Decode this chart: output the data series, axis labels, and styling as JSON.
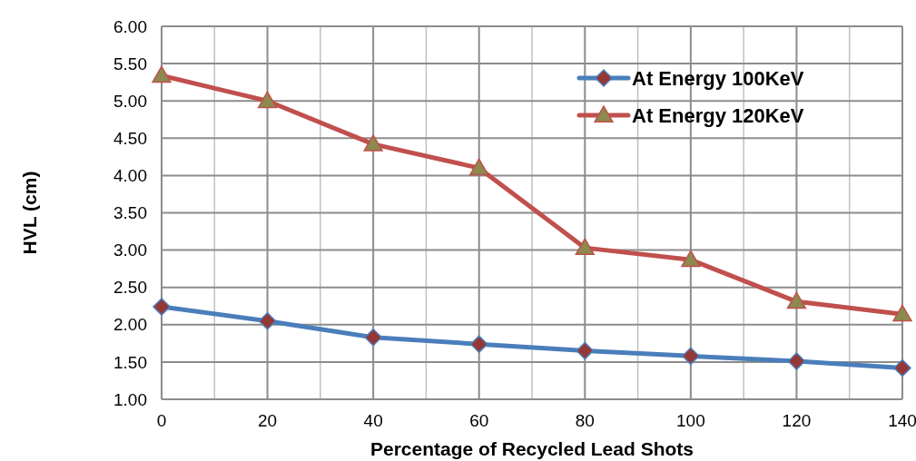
{
  "chart_data": {
    "type": "line",
    "xlabel": "Percentage of Recycled Lead Shots",
    "ylabel": "HVL (cm)",
    "x": [
      0,
      20,
      40,
      60,
      80,
      100,
      120,
      140
    ],
    "series": [
      {
        "name": "At Energy 100KeV",
        "color": "#4a7ebb",
        "marker": "diamond",
        "values": [
          2.24,
          2.05,
          1.83,
          1.74,
          1.65,
          1.58,
          1.51,
          1.42
        ]
      },
      {
        "name": "At Energy 120KeV",
        "color": "#c0504d",
        "marker": "triangle",
        "values": [
          5.34,
          5.0,
          4.42,
          4.1,
          3.03,
          2.87,
          2.31,
          2.14
        ]
      }
    ],
    "xlim": [
      0,
      140
    ],
    "xticks": [
      0,
      {
        "value": 10,
        "label": null
      },
      20,
      {
        "value": 30,
        "label": null
      },
      40,
      {
        "value": 50,
        "label": null
      },
      60,
      {
        "value": 70,
        "label": null
      },
      80,
      {
        "value": 90,
        "label": null
      },
      100,
      {
        "value": 110,
        "label": null
      },
      120,
      {
        "value": 130,
        "label": null
      },
      140
    ],
    "ylim": [
      1,
      6
    ],
    "yticks": [
      {
        "value": 1,
        "label": "1.00"
      },
      {
        "value": 1.5,
        "label": "1.50"
      },
      {
        "value": 2,
        "label": "2.00"
      },
      {
        "value": 2.5,
        "label": "2.50"
      },
      {
        "value": 3,
        "label": "3.00"
      },
      {
        "value": 3.5,
        "label": "3.50"
      },
      {
        "value": 4,
        "label": "4.00"
      },
      {
        "value": 4.5,
        "label": "4.50"
      },
      {
        "value": 5,
        "label": "5.00"
      },
      {
        "value": 5.5,
        "label": "5.50"
      },
      {
        "value": 6,
        "label": "6.00"
      }
    ],
    "grid": true,
    "legend": "top right"
  }
}
